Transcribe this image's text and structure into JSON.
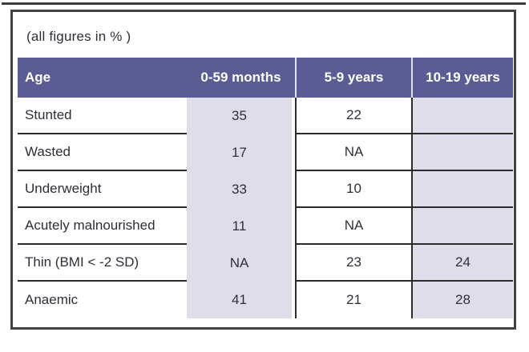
{
  "chart_data": {
    "type": "table",
    "note": "(all figures in % )",
    "columns": [
      "Age",
      "0-59 months",
      "5-9 years",
      "10-19 years"
    ],
    "rows": [
      [
        "Stunted",
        "35",
        "22",
        ""
      ],
      [
        "Wasted",
        "17",
        "NA",
        ""
      ],
      [
        "Underweight",
        "33",
        "10",
        ""
      ],
      [
        "Acutely malnourished",
        "11",
        "NA",
        ""
      ],
      [
        "Thin (BMI < -2 SD)",
        "NA",
        "23",
        "24"
      ],
      [
        "Anaemic",
        "41",
        "21",
        "28"
      ]
    ]
  },
  "colors": {
    "header_bg": "#5b5c94",
    "header_text": "#ffffff",
    "shaded_column_bg": "#dedde9",
    "body_text": "#2e2e38",
    "grid_line": "#2b2b2b",
    "frame_border": "#414141"
  }
}
